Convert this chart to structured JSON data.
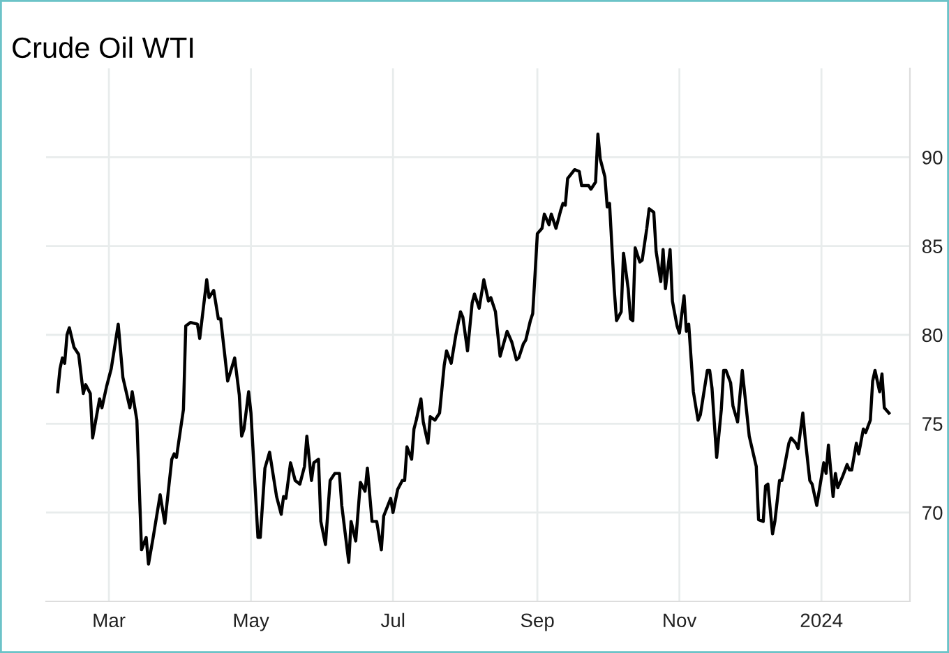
{
  "chart_data": {
    "type": "line",
    "title": "Crude Oil WTI",
    "x": [
      "2023-02-07",
      "2023-02-08",
      "2023-02-09",
      "2023-02-10",
      "2023-02-11",
      "2023-02-12",
      "2023-02-14",
      "2023-02-16",
      "2023-02-18",
      "2023-02-19",
      "2023-02-21",
      "2023-02-22",
      "2023-02-25",
      "2023-02-26",
      "2023-02-28",
      "2023-03-02",
      "2023-03-05",
      "2023-03-07",
      "2023-03-10",
      "2023-03-11",
      "2023-03-13",
      "2023-03-15",
      "2023-03-17",
      "2023-03-18",
      "2023-03-20",
      "2023-03-23",
      "2023-03-25",
      "2023-03-28",
      "2023-03-29",
      "2023-03-30",
      "2023-04-02",
      "2023-04-03",
      "2023-04-05",
      "2023-04-08",
      "2023-04-09",
      "2023-04-12",
      "2023-04-13",
      "2023-04-15",
      "2023-04-17",
      "2023-04-18",
      "2023-04-21",
      "2023-04-24",
      "2023-04-26",
      "2023-04-27",
      "2023-04-28",
      "2023-04-30",
      "2023-05-01",
      "2023-05-04",
      "2023-05-05",
      "2023-05-07",
      "2023-05-09",
      "2023-05-12",
      "2023-05-14",
      "2023-05-15",
      "2023-05-16",
      "2023-05-18",
      "2023-05-20",
      "2023-05-22",
      "2023-05-24",
      "2023-05-25",
      "2023-05-27",
      "2023-05-28",
      "2023-05-30",
      "2023-05-31",
      "2023-06-02",
      "2023-06-04",
      "2023-06-06",
      "2023-06-08",
      "2023-06-09",
      "2023-06-12",
      "2023-06-13",
      "2023-06-15",
      "2023-06-17",
      "2023-06-19",
      "2023-06-20",
      "2023-06-22",
      "2023-06-24",
      "2023-06-26",
      "2023-06-27",
      "2023-06-30",
      "2023-07-01",
      "2023-07-03",
      "2023-07-05",
      "2023-07-06",
      "2023-07-07",
      "2023-07-09",
      "2023-07-10",
      "2023-07-11",
      "2023-07-13",
      "2023-07-14",
      "2023-07-16",
      "2023-07-17",
      "2023-07-19",
      "2023-07-21",
      "2023-07-23",
      "2023-07-24",
      "2023-07-26",
      "2023-07-28",
      "2023-07-30",
      "2023-07-31",
      "2023-08-02",
      "2023-08-04",
      "2023-08-05",
      "2023-08-07",
      "2023-08-09",
      "2023-08-11",
      "2023-08-12",
      "2023-08-14",
      "2023-08-16",
      "2023-08-19",
      "2023-08-21",
      "2023-08-23",
      "2023-08-24",
      "2023-08-26",
      "2023-08-27",
      "2023-08-29",
      "2023-08-30",
      "2023-08-31",
      "2023-09-01",
      "2023-09-03",
      "2023-09-04",
      "2023-09-06",
      "2023-09-07",
      "2023-09-09",
      "2023-09-11",
      "2023-09-12",
      "2023-09-13",
      "2023-09-14",
      "2023-09-17",
      "2023-09-19",
      "2023-09-20",
      "2023-09-23",
      "2023-09-24",
      "2023-09-26",
      "2023-09-27",
      "2023-09-28",
      "2023-09-30",
      "2023-10-01",
      "2023-10-02",
      "2023-10-04",
      "2023-10-05",
      "2023-10-07",
      "2023-10-08",
      "2023-10-10",
      "2023-10-11",
      "2023-10-12",
      "2023-10-13",
      "2023-10-15",
      "2023-10-16",
      "2023-10-18",
      "2023-10-19",
      "2023-10-21",
      "2023-10-22",
      "2023-10-24",
      "2023-10-25",
      "2023-10-26",
      "2023-10-28",
      "2023-10-29",
      "2023-10-31",
      "2023-11-01",
      "2023-11-03",
      "2023-11-04",
      "2023-11-05",
      "2023-11-07",
      "2023-11-09",
      "2023-11-10",
      "2023-11-13",
      "2023-11-14",
      "2023-11-15",
      "2023-11-17",
      "2023-11-19",
      "2023-11-20",
      "2023-11-21",
      "2023-11-23",
      "2023-11-24",
      "2023-11-26",
      "2023-11-27",
      "2023-11-28",
      "2023-12-01",
      "2023-12-04",
      "2023-12-05",
      "2023-12-07",
      "2023-12-08",
      "2023-12-09",
      "2023-12-11",
      "2023-12-12",
      "2023-12-14",
      "2023-12-15",
      "2023-12-16",
      "2023-12-18",
      "2023-12-19",
      "2023-12-21",
      "2023-12-22",
      "2023-12-24",
      "2023-12-25",
      "2023-12-27",
      "2023-12-28",
      "2023-12-30",
      "2024-01-02",
      "2024-01-03",
      "2024-01-04",
      "2024-01-06",
      "2024-01-07",
      "2024-01-08",
      "2024-01-10",
      "2024-01-12",
      "2024-01-13",
      "2024-01-14",
      "2024-01-16",
      "2024-01-17",
      "2024-01-19",
      "2024-01-20",
      "2024-01-22",
      "2024-01-23",
      "2024-01-24",
      "2024-01-26",
      "2024-01-27",
      "2024-01-28",
      "2024-01-30"
    ],
    "series": [
      {
        "color": "#000000",
        "values": [
          76.8,
          78.1,
          78.7,
          78.4,
          80.0,
          80.4,
          79.3,
          78.9,
          76.7,
          77.2,
          76.7,
          74.2,
          76.4,
          75.9,
          77.1,
          78.1,
          80.6,
          77.6,
          75.9,
          76.8,
          75.2,
          67.9,
          68.6,
          67.1,
          68.6,
          71.0,
          69.4,
          73.0,
          73.3,
          73.1,
          75.8,
          80.5,
          80.7,
          80.6,
          79.8,
          83.1,
          82.1,
          82.5,
          80.9,
          80.9,
          77.4,
          78.7,
          76.6,
          74.3,
          74.7,
          76.8,
          75.6,
          68.6,
          68.6,
          72.5,
          73.4,
          70.9,
          69.9,
          70.9,
          70.8,
          72.8,
          71.8,
          71.6,
          72.6,
          74.3,
          71.8,
          72.8,
          73.0,
          69.5,
          68.2,
          71.8,
          72.2,
          72.2,
          70.4,
          67.2,
          69.5,
          68.4,
          71.7,
          71.2,
          72.5,
          69.5,
          69.5,
          67.9,
          69.8,
          70.8,
          70.0,
          71.3,
          71.8,
          71.8,
          73.7,
          73.0,
          74.7,
          75.2,
          76.4,
          75.1,
          73.9,
          75.4,
          75.2,
          75.6,
          78.3,
          79.1,
          78.4,
          80.0,
          81.3,
          81.0,
          79.1,
          81.8,
          82.3,
          81.5,
          83.1,
          81.9,
          82.1,
          81.3,
          78.8,
          80.2,
          79.6,
          78.6,
          78.7,
          79.5,
          79.7,
          80.8,
          81.2,
          83.4,
          85.7,
          86.0,
          86.8,
          86.2,
          86.8,
          86.0,
          87.0,
          87.4,
          87.3,
          88.8,
          89.3,
          89.2,
          88.4,
          88.4,
          88.2,
          88.6,
          91.3,
          89.9,
          88.9,
          87.2,
          87.4,
          82.6,
          80.8,
          81.3,
          84.6,
          82.6,
          80.9,
          80.8,
          84.9,
          84.1,
          84.2,
          86.0,
          87.1,
          86.9,
          84.7,
          83.0,
          84.8,
          82.6,
          84.8,
          81.9,
          80.5,
          80.1,
          82.2,
          80.2,
          80.6,
          76.8,
          75.2,
          75.5,
          78.0,
          78.0,
          77.0,
          73.1,
          75.8,
          78.0,
          78.0,
          77.3,
          76.0,
          75.1,
          76.6,
          78.0,
          74.3,
          72.6,
          69.6,
          69.5,
          71.5,
          71.6,
          68.8,
          69.5,
          71.8,
          71.8,
          72.5,
          73.9,
          74.2,
          73.9,
          73.6,
          75.6,
          74.2,
          71.8,
          71.6,
          70.4,
          72.8,
          72.2,
          73.8,
          70.9,
          72.2,
          71.4,
          72.0,
          72.7,
          72.4,
          72.4,
          73.9,
          73.3,
          74.7,
          74.5,
          75.2,
          77.4,
          78.0,
          76.8,
          77.8,
          75.9,
          75.6
        ]
      }
    ],
    "xlim": [
      "2023-02-02",
      "2024-02-08"
    ],
    "xticks": [
      {
        "value": "2023-03-01",
        "label": "Mar"
      },
      {
        "value": "2023-05-01",
        "label": "May"
      },
      {
        "value": "2023-07-01",
        "label": "Jul"
      },
      {
        "value": "2023-09-01",
        "label": "Sep"
      },
      {
        "value": "2023-11-01",
        "label": "Nov"
      },
      {
        "value": "2024-01-01",
        "label": "2024"
      }
    ],
    "ylim": [
      65,
      95
    ],
    "yticks": [
      70,
      75,
      80,
      85,
      90
    ],
    "grid": true,
    "legend": false,
    "marker": "none",
    "line_style": "solid"
  }
}
